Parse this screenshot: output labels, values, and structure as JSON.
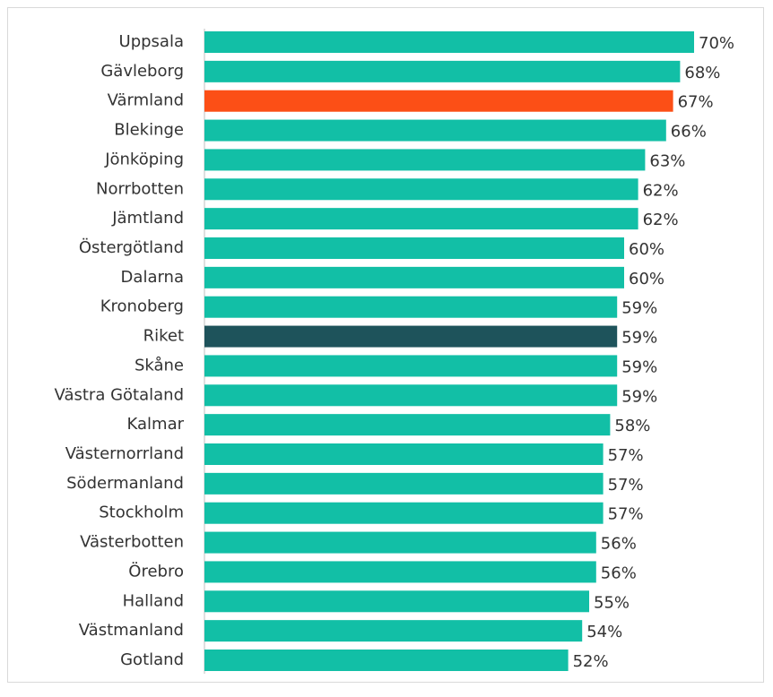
{
  "chart_data": {
    "type": "barh",
    "categories": [
      "Uppsala",
      "Gävleborg",
      "Värmland",
      "Blekinge",
      "Jönköping",
      "Norrbotten",
      "Jämtland",
      "Östergötland",
      "Dalarna",
      "Kronoberg",
      "Riket",
      "Skåne",
      "Västra Götaland",
      "Kalmar",
      "Västernorrland",
      "Södermanland",
      "Stockholm",
      "Västerbotten",
      "Örebro",
      "Halland",
      "Västmanland",
      "Gotland"
    ],
    "values": [
      70,
      68,
      67,
      66,
      63,
      62,
      62,
      60,
      60,
      59,
      59,
      59,
      59,
      58,
      57,
      57,
      57,
      56,
      56,
      55,
      54,
      52
    ],
    "value_labels": [
      "70%",
      "68%",
      "67%",
      "66%",
      "63%",
      "62%",
      "62%",
      "60%",
      "60%",
      "59%",
      "59%",
      "59%",
      "59%",
      "58%",
      "57%",
      "57%",
      "57%",
      "56%",
      "56%",
      "55%",
      "54%",
      "52%"
    ],
    "colors": [
      "#12bfa6",
      "#12bfa6",
      "#fc4f16",
      "#12bfa6",
      "#12bfa6",
      "#12bfa6",
      "#12bfa6",
      "#12bfa6",
      "#12bfa6",
      "#12bfa6",
      "#1e535b",
      "#12bfa6",
      "#12bfa6",
      "#12bfa6",
      "#12bfa6",
      "#12bfa6",
      "#12bfa6",
      "#12bfa6",
      "#12bfa6",
      "#12bfa6",
      "#12bfa6",
      "#12bfa6"
    ]
  }
}
